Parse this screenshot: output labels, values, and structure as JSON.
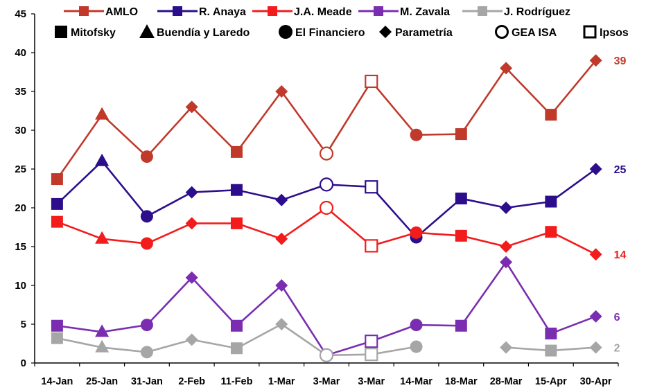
{
  "chart_data": {
    "type": "line",
    "categories": [
      "14-Jan",
      "25-Jan",
      "31-Jan",
      "2-Feb",
      "11-Feb",
      "1-Mar",
      "3-Mar",
      "3-Mar",
      "14-Mar",
      "18-Mar",
      "28-Mar",
      "15-Apr",
      "30-Apr"
    ],
    "pollsters": [
      "Mitofsky",
      "Buendía y Laredo",
      "El Financiero",
      "Parametría",
      "Mitofsky",
      "Parametría",
      "GEA ISA",
      "Ipsos",
      "El Financiero",
      "Mitofsky",
      "Parametría",
      "Mitofsky",
      "Parametría"
    ],
    "ylim": [
      0,
      45
    ],
    "yticks": [
      0,
      5,
      10,
      15,
      20,
      25,
      30,
      35,
      40,
      45
    ],
    "grid": false,
    "legend_position": "top",
    "series": [
      {
        "name": "AMLO",
        "color": "#C0392B",
        "values": [
          23.7,
          32,
          26.6,
          33,
          27.2,
          35,
          27,
          36.3,
          29.4,
          29.5,
          38,
          32,
          39
        ],
        "end_label": "39"
      },
      {
        "name": "R. Anaya",
        "color": "#2C0E8C",
        "values": [
          20.5,
          26,
          18.9,
          22,
          22.3,
          21,
          23,
          22.7,
          16.2,
          21.2,
          20,
          20.8,
          25
        ],
        "end_label": "25"
      },
      {
        "name": "J.A. Meade",
        "color": "#F21C1C",
        "values": [
          18.2,
          16,
          15.4,
          18,
          18,
          16,
          20,
          15.1,
          16.8,
          16.4,
          15,
          16.9,
          14
        ],
        "end_label": "14"
      },
      {
        "name": "M. Zavala",
        "color": "#7A2DB0",
        "values": [
          4.8,
          4,
          4.9,
          11,
          4.8,
          10,
          1,
          2.8,
          4.9,
          4.8,
          13,
          3.8,
          6
        ],
        "end_label": "6"
      },
      {
        "name": "J. Rodríguez",
        "color": "#A6A6A6",
        "values": [
          3.2,
          2,
          1.4,
          3,
          1.9,
          5,
          1,
          1.1,
          2.1,
          null,
          2,
          1.6,
          2
        ],
        "end_label": "2"
      }
    ],
    "pollster_legend": [
      {
        "label": "Mitofsky",
        "shape": "square"
      },
      {
        "label": "Buendía y Laredo",
        "shape": "triangle"
      },
      {
        "label": "El Financiero",
        "shape": "circle"
      },
      {
        "label": "Parametría",
        "shape": "diamond"
      },
      {
        "label": "GEA  ISA",
        "shape": "open-circle"
      },
      {
        "label": "Ipsos",
        "shape": "open-square"
      }
    ]
  }
}
